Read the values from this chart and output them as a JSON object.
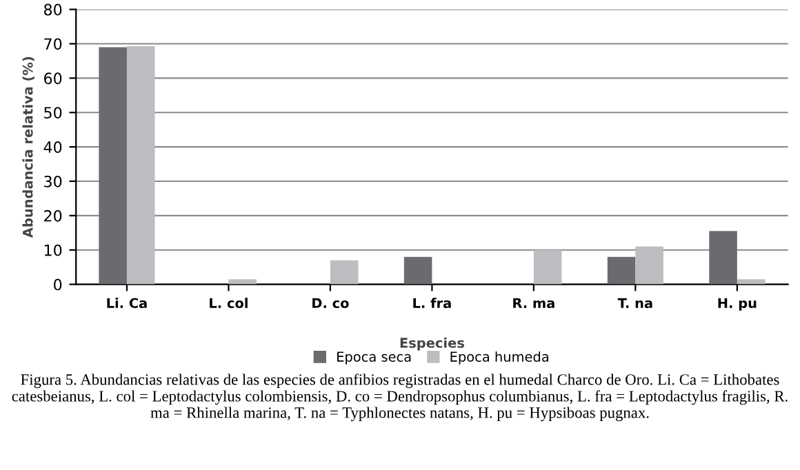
{
  "chart_data": {
    "type": "bar",
    "xlabel": "Especies",
    "ylabel": "Abundancia relativa (%)",
    "categories": [
      "Li. Ca",
      "L. col",
      "D. co",
      "L. fra",
      "R. ma",
      "T. na",
      "H. pu"
    ],
    "series": [
      {
        "name": "Epoca seca",
        "color": "#6a6b6f",
        "values": [
          69,
          0,
          0,
          8,
          0,
          8,
          15.5
        ]
      },
      {
        "name": "Epoca humeda",
        "color": "#bcbdc0",
        "values": [
          69.3,
          1.5,
          7,
          0,
          10,
          11,
          1.5
        ]
      }
    ],
    "ylim": [
      0,
      80
    ],
    "yticks": [
      0,
      10,
      20,
      30,
      40,
      50,
      60,
      70,
      80
    ],
    "grid": "y",
    "legend": "bottom",
    "annotations": [
      "Figura 5. Abundancias relativas de las especies de anfibios registradas en el humedal Charco de Oro. Li. Ca = Lithobates catesbeianus, L. col = Leptodactylus colombiensis, D. co = Dendropsophus columbianus, L. fra = Leptodactylus fragilis, R. ma = Rhinella marina, T. na = Typhlonectes natans, H. pu = Hypsiboas pugnax."
    ]
  }
}
